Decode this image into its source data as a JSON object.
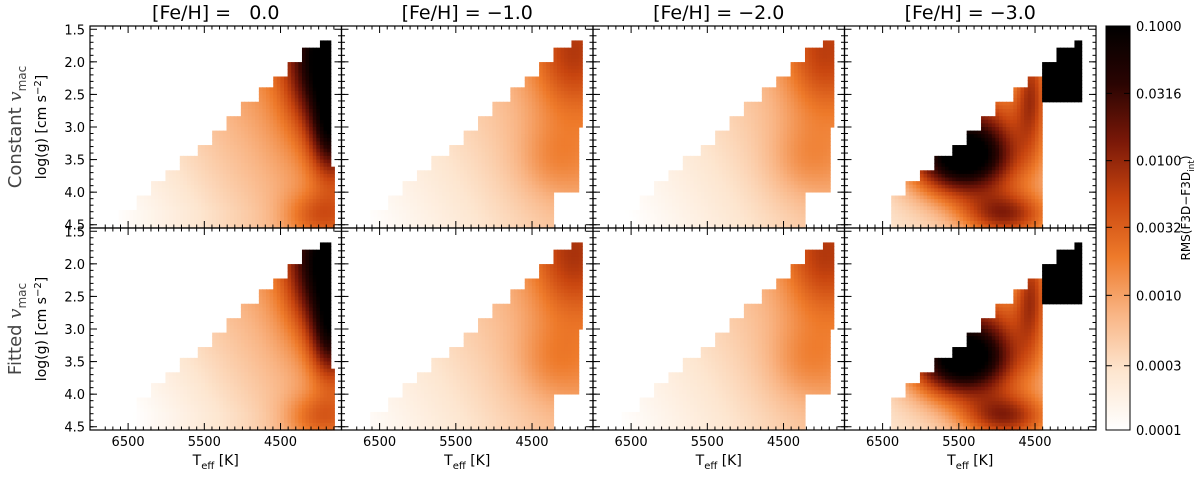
{
  "chart_data": {
    "type": "heatmap",
    "description_title": "RMS(F3D - F3D_int) grid",
    "columns": [
      {
        "title": "[Fe/H] =   0.0",
        "feh": 0.0
      },
      {
        "title": "[Fe/H] = −1.0",
        "feh": -1.0
      },
      {
        "title": "[Fe/H] = −2.0",
        "feh": -2.0
      },
      {
        "title": "[Fe/H] = −3.0",
        "feh": -3.0
      }
    ],
    "rows": [
      {
        "label_main": "Constant ",
        "label_var": "v",
        "label_sub": "mac",
        "mode": "constant"
      },
      {
        "label_main": "Fitted ",
        "label_var": "v",
        "label_sub": "mac",
        "mode": "fitted"
      }
    ],
    "xlabel": {
      "main": "T",
      "sub": "eff",
      "unit": " [K]"
    },
    "ylabel": {
      "main": "log(g) [cm s",
      "sup": "−2",
      "end": "]"
    },
    "x_range": [
      7000,
      3700
    ],
    "y_range": [
      4.55,
      1.45
    ],
    "x_ticks": [
      6500,
      5500,
      4500
    ],
    "x_tick_labels": [
      "6500",
      "5500",
      "4500"
    ],
    "y_ticks": [
      1.5,
      2.0,
      2.5,
      3.0,
      3.5,
      4.0,
      4.5
    ],
    "y_tick_labels": [
      "1.5",
      "2.0",
      "2.5",
      "3.0",
      "3.5",
      "4.0",
      "4.5"
    ],
    "colorbar": {
      "scale": "log",
      "range": [
        0.0001,
        0.1
      ],
      "ticks": [
        0.0001,
        0.0003,
        0.001,
        0.0032,
        0.01,
        0.0316,
        0.1
      ],
      "tick_labels": [
        "0.0001",
        "0.0003",
        "0.0010",
        "0.0032",
        "0.0100",
        "0.0316",
        "0.1000"
      ],
      "label_main": "RMS(F3D−F3D",
      "label_sub": "int",
      "label_end": ")",
      "colors": [
        "#ffffff",
        "#fde6d0",
        "#f9b585",
        "#ee7a2a",
        "#c8450f",
        "#7a1808",
        "#2a0402",
        "#000000"
      ]
    },
    "approximate_values": {
      "constant": {
        "0.0": {
          "cool_giants_upper_right": 0.1,
          "mid_teff_giants": 0.001,
          "hot_dwarfs": 0.0001
        },
        "-1.0": {
          "cool_giants_upper_right": 0.003,
          "hot_dwarfs": 0.0001
        },
        "-2.0": {
          "cool_giants_upper_right": 0.003,
          "hot_dwarfs": 0.0001
        },
        "-3.0": {
          "peak_at_teff_5500_logg_3.5": 0.1,
          "cool_edge": 0.1,
          "hot_dwarfs": 0.0003
        }
      },
      "fitted": {
        "0.0": {
          "cool_giants_upper_right": 0.1,
          "mid_teff_giants": 0.0008,
          "hot_dwarfs": 0.0001
        },
        "-1.0": {
          "cool_giants_upper_right": 0.003,
          "hot_dwarfs": 0.0001
        },
        "-2.0": {
          "cool_giants_upper_right": 0.002,
          "hot_dwarfs": 0.0001
        },
        "-3.0": {
          "peak_at_teff_5400_logg_3.5": 0.1,
          "cool_edge": 0.1,
          "hot_dwarfs": 0.0003
        }
      }
    }
  }
}
